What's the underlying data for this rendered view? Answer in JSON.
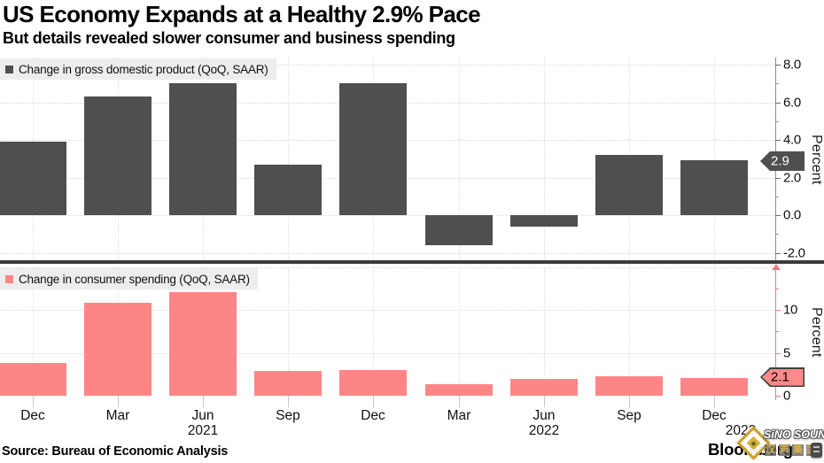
{
  "title": "US Economy Expands at a Healthy 2.9% Pace",
  "subtitle": "But details revealed slower consumer and business spending",
  "source": "Source: Bureau of Economic Analysis",
  "brand": "Bloomberg",
  "watermark": {
    "line1": "SiNO SOUND",
    "line2": "汉声集团",
    "diamond_icon": "gold-diamond-logo"
  },
  "colors": {
    "gdp_bar": "#4f4f4f",
    "spending_bar": "#fc8686",
    "gray_axis": "#8c8c8c",
    "pink_axis": "#ee7f7f",
    "grid": "#d9d9d9",
    "legend_bg": "#ededed",
    "divider": "#3b3b3b",
    "tag_gdp_bg": "#4f4f4f",
    "tag_gdp_text": "#ffffff",
    "tag_spending_bg": "#fb8a8a",
    "tag_spending_text": "#000000"
  },
  "x_axis": {
    "tick_labels": [
      "Dec",
      "Mar",
      "Jun",
      "Sep",
      "Dec",
      "Mar",
      "Jun",
      "Sep",
      "Dec"
    ],
    "year_labels": [
      "2021",
      "2022",
      "2023"
    ]
  },
  "chart_data": [
    {
      "type": "bar",
      "name": "gdp",
      "legend": "Change in gross domestic product (QoQ, SAAR)",
      "categories": [
        "Dec 2020",
        "Mar 2021",
        "Jun 2021",
        "Sep 2021",
        "Dec 2021",
        "Mar 2022",
        "Jun 2022",
        "Sep 2022",
        "Dec 2022"
      ],
      "values": [
        3.9,
        6.3,
        7.0,
        2.7,
        7.0,
        -1.6,
        -0.6,
        3.2,
        2.9
      ],
      "title": "",
      "xlabel": "",
      "ylabel": "Percent",
      "ylim": [
        -2.5,
        8.4
      ],
      "yticks_major": [
        8,
        6,
        4,
        2,
        0,
        -2
      ],
      "ytick_labels": [
        "8.0",
        "6.0",
        "4.0",
        "2.0",
        "0.0",
        "-2.0"
      ],
      "yticks_minor": [
        7,
        5,
        3,
        1,
        -1
      ],
      "gridlines": [
        8,
        6,
        4,
        2,
        0,
        -2
      ],
      "grid": true,
      "legend_position": "top-left",
      "last_value_label": "2.9"
    },
    {
      "type": "bar",
      "name": "consumer-spending",
      "legend": "Change in consumer spending (QoQ, SAAR)",
      "categories": [
        "Dec 2020",
        "Mar 2021",
        "Jun 2021",
        "Sep 2021",
        "Dec 2021",
        "Mar 2022",
        "Jun 2022",
        "Sep 2022",
        "Dec 2022"
      ],
      "values": [
        3.8,
        10.8,
        12.1,
        2.9,
        3.0,
        1.3,
        2.0,
        2.3,
        2.1
      ],
      "title": "",
      "xlabel": "",
      "ylabel": "Percent",
      "ylim": [
        0,
        15
      ],
      "yticks_major": [
        10,
        5,
        0
      ],
      "ytick_labels": [
        "10",
        "5",
        "0"
      ],
      "yticks_minor": [
        12.5,
        7.5,
        2.5
      ],
      "gridlines": [
        15,
        10,
        5,
        0
      ],
      "grid": true,
      "legend_position": "top-left",
      "axis_truncated_arrow": "up",
      "last_value_label": "2.1"
    }
  ]
}
